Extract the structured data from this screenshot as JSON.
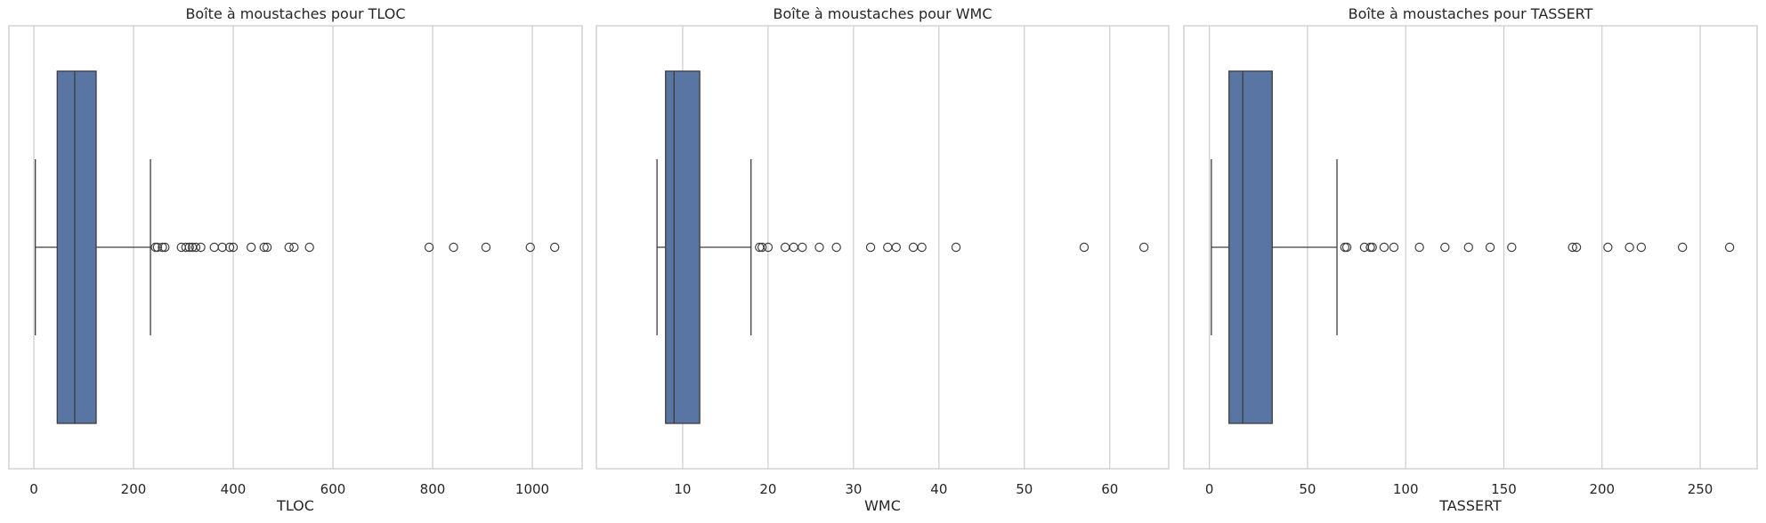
{
  "chart_data": [
    {
      "type": "boxplot",
      "orientation": "horizontal",
      "title": "Boîte à moustaches pour TLOC",
      "xlabel": "TLOC",
      "xlim": [
        -50,
        1100
      ],
      "xticks": [
        0,
        200,
        400,
        600,
        800,
        1000
      ],
      "grid": "vertical",
      "box": {
        "whisker_low": 3,
        "q1": 47,
        "median": 82,
        "q3": 125,
        "whisker_high": 234
      },
      "outliers": [
        244,
        248,
        258,
        263,
        296,
        305,
        312,
        318,
        325,
        335,
        362,
        378,
        393,
        400,
        436,
        462,
        468,
        512,
        522,
        553,
        793,
        842,
        907,
        996,
        1045
      ],
      "color": "#5875a4"
    },
    {
      "type": "boxplot",
      "orientation": "horizontal",
      "title": "Boîte à moustaches pour WMC",
      "xlabel": "WMC",
      "xlim": [
        -0.1,
        66.9
      ],
      "xticks": [
        10,
        20,
        30,
        40,
        50,
        60
      ],
      "grid": "vertical",
      "box": {
        "whisker_low": 7,
        "q1": 8,
        "median": 9,
        "q3": 12,
        "whisker_high": 18
      },
      "outliers": [
        19,
        19.3,
        20,
        22,
        23,
        24,
        26,
        28,
        32,
        34,
        35,
        37,
        38,
        42,
        57,
        64
      ],
      "color": "#5875a4"
    },
    {
      "type": "boxplot",
      "orientation": "horizontal",
      "title": "Boîte à moustaches pour TASSERT",
      "xlabel": "TASSERT",
      "xlim": [
        -13,
        279
      ],
      "xticks": [
        0,
        50,
        100,
        150,
        200,
        250
      ],
      "grid": "vertical",
      "box": {
        "whisker_low": 1,
        "q1": 10,
        "median": 17,
        "q3": 32,
        "whisker_high": 65
      },
      "outliers": [
        69,
        70,
        79,
        82,
        83,
        89,
        94,
        107,
        120,
        132,
        143,
        154,
        185,
        187,
        203,
        214,
        220,
        241,
        265
      ],
      "color": "#5875a4"
    }
  ]
}
